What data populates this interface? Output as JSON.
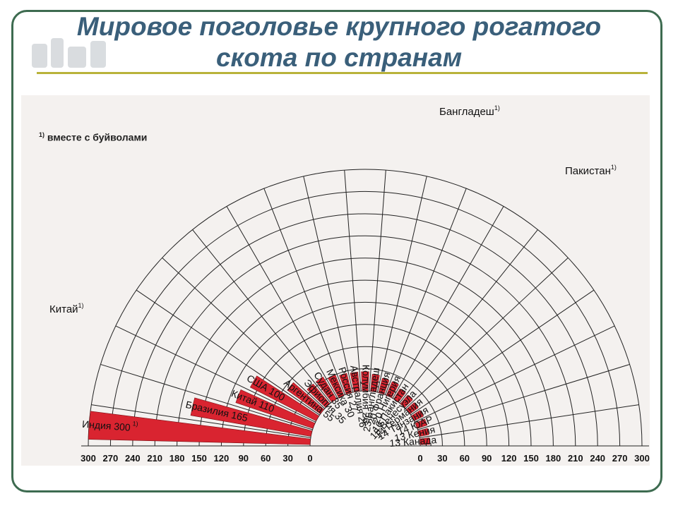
{
  "title_line1": "Мировое поголовье крупного рогатого",
  "title_line2": "скота по странам",
  "footnote_mark": "1)",
  "footnote_text": "вместе с буйволами",
  "chart_data": {
    "type": "radial-bar",
    "title": "",
    "bar_color": "#d92430",
    "ticks": [
      0,
      30,
      60,
      90,
      120,
      150,
      180,
      210,
      240,
      270,
      300
    ],
    "series": [
      {
        "label": "Индия",
        "value": 300,
        "footnote": "1)"
      },
      {
        "label": "Бразилия",
        "value": 165
      },
      {
        "label": "Китай",
        "value": 110
      },
      {
        "label": "США",
        "value": 100
      },
      {
        "label": "Аргентина",
        "value": 55
      },
      {
        "label": "Эфиопия",
        "value": 35
      },
      {
        "label": "Судан",
        "value": 35
      },
      {
        "label": "Мексика",
        "value": 30
      },
      {
        "label": "Россия",
        "value": 27
      },
      {
        "label": "Австралия",
        "value": 26
      },
      {
        "label": "Колумбия",
        "value": 26
      },
      {
        "label": "Бангладеш",
        "value": 23
      },
      {
        "label": "Франция",
        "value": 20
      },
      {
        "label": "Нигерия",
        "value": 20
      },
      {
        "label": "Пакистан",
        "value": 16
      },
      {
        "label": "Венесуэла",
        "value": 15
      },
      {
        "label": "Германия",
        "value": 14
      },
      {
        "label": "Танзания",
        "value": 14
      },
      {
        "label": "ЮАР",
        "value": 14
      },
      {
        "label": "Кения",
        "value": 13
      },
      {
        "label": "Канада",
        "value": 13
      }
    ],
    "outer_labels": [
      {
        "label": "Китай",
        "footnote": "1)"
      },
      {
        "label": "Бангладеш",
        "footnote": "1)"
      },
      {
        "label": "Пакистан",
        "footnote": "1)"
      }
    ]
  }
}
